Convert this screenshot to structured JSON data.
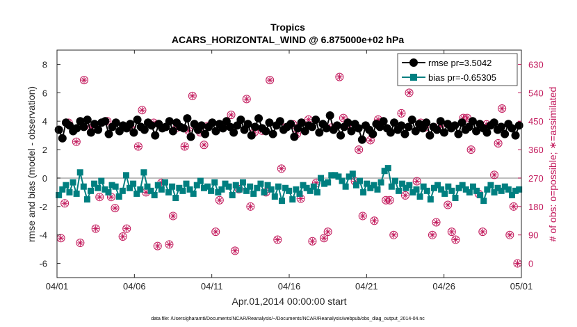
{
  "chart_data": {
    "type": "line",
    "title": "Tropics",
    "subtitle": "ACARS_HORIZONTAL_WIND @ 6.875000e+02 hPa",
    "xlabel": "Apr.01,2014 00:00:00 start",
    "ylabel": "rmse and bias (model - observation)",
    "y2label": "# of obs: o=possible; ∗=assimilated",
    "footnote": "data file: /Users/gharamti/Documents/NCAR/Reanalysis/~/Documents/NCAR/Reanalysis/webpub/obs_diag_output_2014-04.nc",
    "xlim": [
      0,
      30
    ],
    "ylim": [
      -7,
      9
    ],
    "y2lim": [
      -45,
      675
    ],
    "x_ticks": [
      0,
      5,
      10,
      15,
      20,
      25,
      30
    ],
    "x_tick_labels": [
      "04/01",
      "04/06",
      "04/11",
      "04/16",
      "04/21",
      "04/26",
      "05/01"
    ],
    "y_ticks": [
      -6,
      -4,
      -2,
      0,
      2,
      4,
      6,
      8
    ],
    "y_tick_labels": [
      "-6",
      "-4",
      "-2",
      "0",
      "2",
      "4",
      "6",
      "8"
    ],
    "y2_ticks": [
      0,
      90,
      180,
      270,
      360,
      450,
      540,
      630
    ],
    "y2_tick_labels": [
      "0",
      "90",
      "180",
      "270",
      "360",
      "450",
      "540",
      "630"
    ],
    "legend_position": "top-right",
    "series": [
      {
        "name": "rmse",
        "label": "rmse pr=3.5042",
        "color": "#000000",
        "marker": "circle",
        "values": [
          3.4,
          2.8,
          3.9,
          3.7,
          3.3,
          3.5,
          4.0,
          3.6,
          4.1,
          3.2,
          3.8,
          3.4,
          3.9,
          4.0,
          3.1,
          3.6,
          3.9,
          3.3,
          3.7,
          3.5,
          3.8,
          3.2,
          4.1,
          3.6,
          3.4,
          3.9,
          3.7,
          3.0,
          3.8,
          3.5,
          3.6,
          4.0,
          3.3,
          3.9,
          3.6,
          3.5,
          4.2,
          2.9,
          3.8,
          3.4,
          3.7,
          3.1,
          3.6,
          3.9,
          3.3,
          3.8,
          3.5,
          4.0,
          3.6,
          3.2,
          3.7,
          4.1,
          3.4,
          3.8,
          3.0,
          3.6,
          4.2,
          3.5,
          3.3,
          3.9,
          3.1,
          3.7,
          4.0,
          3.4,
          3.6,
          3.8,
          2.9,
          3.5,
          3.9,
          3.3,
          3.7,
          3.6,
          4.1,
          3.2,
          3.8,
          3.5,
          4.4,
          3.4,
          3.7,
          3.0,
          3.6,
          3.9,
          3.3,
          3.8,
          3.5,
          2.7,
          3.7,
          3.4,
          3.1,
          3.8,
          3.6,
          4.0,
          3.5,
          3.2,
          3.9,
          3.4,
          3.7,
          3.1,
          3.6,
          4.1,
          3.3,
          3.8,
          3.5,
          3.9,
          3.0,
          3.6,
          3.4,
          4.0,
          3.2,
          3.8,
          3.5,
          3.7,
          3.1,
          3.9,
          3.4,
          3.6,
          4.0,
          3.3,
          3.8,
          3.5,
          3.2,
          3.7,
          3.9,
          3.4,
          3.6,
          3.1,
          3.8,
          3.5,
          3.0,
          3.7
        ]
      },
      {
        "name": "bias",
        "label": "bias pr=-0.65305",
        "color": "#007f80",
        "marker": "square",
        "values": [
          -1.2,
          -0.8,
          -0.5,
          -1.0,
          -0.3,
          -1.1,
          0.4,
          -0.6,
          -1.5,
          -0.9,
          -0.4,
          -0.7,
          -0.2,
          -0.8,
          -1.0,
          -0.5,
          -0.6,
          -1.3,
          -0.9,
          0.2,
          -0.7,
          -0.4,
          -1.1,
          -0.8,
          0.4,
          -0.6,
          -0.9,
          -1.2,
          -0.5,
          -0.8,
          -0.3,
          -1.0,
          -0.6,
          -1.4,
          -0.7,
          -0.9,
          -0.4,
          -0.8,
          -1.1,
          -0.5,
          -0.2,
          -0.7,
          -0.6,
          -0.9,
          -0.3,
          -1.0,
          -0.8,
          -0.4,
          -0.6,
          -1.2,
          -0.5,
          -0.8,
          -0.3,
          -0.9,
          -0.6,
          -1.1,
          -0.7,
          -0.4,
          -1.0,
          -0.5,
          -0.8,
          -1.3,
          -0.6,
          -1.6,
          -0.7,
          -0.9,
          -1.5,
          -0.8,
          -1.1,
          -0.5,
          -0.7,
          -0.9,
          -0.6,
          -1.0,
          0.0,
          -0.4,
          -0.3,
          0.2,
          0.2,
          0.1,
          -0.2,
          -0.6,
          0.1,
          0.3,
          -0.5,
          -0.2,
          -1.0,
          -0.4,
          -0.7,
          -0.5,
          -0.8,
          -0.3,
          0.5,
          0.7,
          -0.6,
          -0.2,
          -0.9,
          -0.4,
          -0.7,
          -0.5,
          -1.0,
          -0.8,
          -1.3,
          -0.6,
          -0.9,
          -1.5,
          -0.7,
          -0.5,
          -0.8,
          -1.1,
          -0.6,
          -0.9,
          -1.4,
          -0.7,
          -0.5,
          -0.8,
          -1.0,
          -0.6,
          -0.9,
          -1.2,
          -1.6,
          -0.8,
          -0.5,
          -1.0,
          -0.7,
          -0.9,
          -0.6,
          -0.8,
          -1.2,
          -0.9,
          -0.8
        ]
      },
      {
        "name": "obs_possible",
        "label": "o=possible",
        "color": "#c2185b",
        "marker": "circle-open",
        "x": [
          0.25,
          0.75,
          1.25,
          1.75,
          2.25,
          2.75,
          3.25,
          3.75,
          4.25,
          4.75,
          5.25,
          5.75,
          6.25,
          6.75,
          7.25,
          7.75,
          8.25,
          8.75,
          9.25,
          9.75,
          10.25,
          10.75,
          11.25,
          11.75,
          12.25,
          12.75,
          13.25,
          13.75,
          14.25,
          14.75,
          15.25,
          15.75,
          16.25,
          16.75,
          17.25,
          17.75,
          18.25,
          18.75,
          19.25,
          19.75,
          20.25,
          20.75,
          21.25,
          21.75,
          22.25,
          22.75,
          23.25,
          23.75,
          24.25,
          24.75,
          25.25,
          25.75,
          26.25,
          26.75,
          27.25,
          27.75,
          28.25,
          28.75,
          29.25,
          29.75
        ],
        "values": [
          80,
          445,
          385,
          580,
          430,
          210,
          450,
          175,
          85,
          430,
          370,
          225,
          445,
          255,
          60,
          430,
          370,
          530,
          415,
          435,
          100,
          430,
          470,
          235,
          520,
          415,
          420,
          580,
          75,
          430,
          440,
          205,
          455,
          255,
          80,
          430,
          590,
          440,
          260,
          150,
          390,
          455,
          200,
          90,
          475,
          540,
          260,
          430,
          90,
          435,
          185,
          75,
          460,
          360,
          220,
          440,
          280,
          490,
          90,
          0
        ],
        "x_alt": [
          0.5,
          1.5,
          2.5,
          3.5,
          4.5,
          5.5,
          6.5,
          7.5,
          8.5,
          9.5,
          10.5,
          11.5,
          12.5,
          13.5,
          14.5,
          15.5,
          16.5,
          17.5,
          18.5,
          19.5,
          20.5,
          21.5,
          22.5,
          23.5,
          24.5,
          25.5,
          26.5,
          27.5,
          28.5,
          29.5
        ],
        "values_alt": [
          190,
          65,
          110,
          210,
          110,
          485,
          55,
          150,
          420,
          375,
          200,
          40,
          180,
          225,
          300,
          410,
          70,
          100,
          460,
          360,
          135,
          200,
          215,
          445,
          130,
          100,
          460,
          100,
          380,
          180
        ]
      },
      {
        "name": "obs_assimilated",
        "label": "∗=assimilated",
        "color": "#c2185b",
        "marker": "asterisk",
        "note": "assimilated counts coincide with possible counts (drawn at same points)"
      }
    ]
  }
}
